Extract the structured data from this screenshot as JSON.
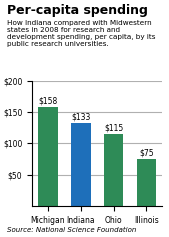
{
  "chart_data": {
    "type": "bar",
    "title": "Per-capita spending",
    "subtitle": "How Indiana compared with Midwestern states in 2008 for research and development spending, per capita, by its public research universities.",
    "source": "Source: National Science Foundation",
    "categories": [
      "Michigan",
      "Indiana",
      "Ohio",
      "Illinois"
    ],
    "values": [
      158,
      133,
      115,
      75
    ],
    "value_labels": [
      "$158",
      "$133",
      "$115",
      "$75"
    ],
    "colors": [
      "#2e8b57",
      "#1e6fba",
      "#2e8b57",
      "#2e8b57"
    ],
    "ylim": [
      0,
      200
    ],
    "yticks": [
      {
        "value": 50,
        "label": "$50"
      },
      {
        "value": 100,
        "label": "$100"
      },
      {
        "value": 150,
        "label": "$150"
      },
      {
        "value": 200,
        "label": "$200"
      }
    ],
    "grid": true,
    "data_labels": true
  }
}
